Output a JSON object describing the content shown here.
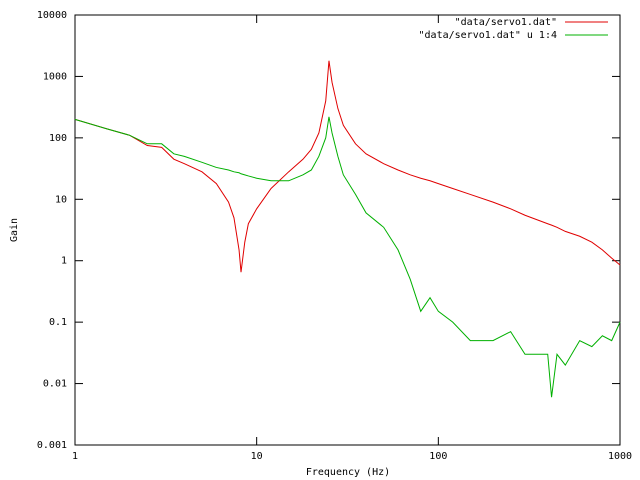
{
  "chart_data": {
    "type": "line",
    "x_label": "Frequency (Hz)",
    "y_label": "Gain",
    "x_log": true,
    "y_log": true,
    "xlim": [
      1,
      1000
    ],
    "ylim": [
      0.001,
      10000
    ],
    "xticks": [
      1,
      10,
      100,
      1000
    ],
    "yticks": [
      0.001,
      0.01,
      0.1,
      1,
      10,
      100,
      1000,
      10000
    ],
    "legend": "top-right",
    "x": [
      1,
      1.5,
      2,
      2.5,
      3,
      3.5,
      4,
      5,
      6,
      7,
      7.5,
      8,
      8.2,
      8.6,
      9,
      10,
      12,
      15,
      18,
      20,
      22,
      24,
      25,
      26,
      28,
      30,
      35,
      40,
      50,
      60,
      70,
      80,
      90,
      100,
      120,
      150,
      200,
      250,
      300,
      400,
      420,
      450,
      500,
      600,
      700,
      800,
      900,
      1000
    ],
    "series": [
      {
        "name": "\"data/servo1.dat\"",
        "color": "#e00000",
        "values": [
          200,
          140,
          110,
          75,
          70,
          45,
          38,
          28,
          18,
          9,
          5,
          1.5,
          0.65,
          2,
          4,
          7,
          15,
          28,
          45,
          65,
          120,
          400,
          1800,
          800,
          300,
          160,
          80,
          55,
          38,
          30,
          25,
          22,
          20,
          18,
          15,
          12,
          9,
          7,
          5.5,
          4,
          3.8,
          3.5,
          3,
          2.5,
          2,
          1.5,
          1.1,
          0.85
        ]
      },
      {
        "name": "\"data/servo1.dat\" u 1:4",
        "color": "#00b000",
        "values": [
          200,
          140,
          110,
          80,
          80,
          55,
          50,
          40,
          33,
          30,
          28,
          27,
          26,
          25,
          24,
          22,
          20,
          20,
          25,
          30,
          50,
          100,
          220,
          120,
          50,
          25,
          12,
          6,
          3.5,
          1.5,
          0.5,
          0.15,
          0.25,
          0.15,
          0.1,
          0.05,
          0.05,
          0.07,
          0.03,
          0.03,
          0.006,
          0.03,
          0.02,
          0.05,
          0.04,
          0.06,
          0.05,
          0.1
        ]
      }
    ]
  }
}
